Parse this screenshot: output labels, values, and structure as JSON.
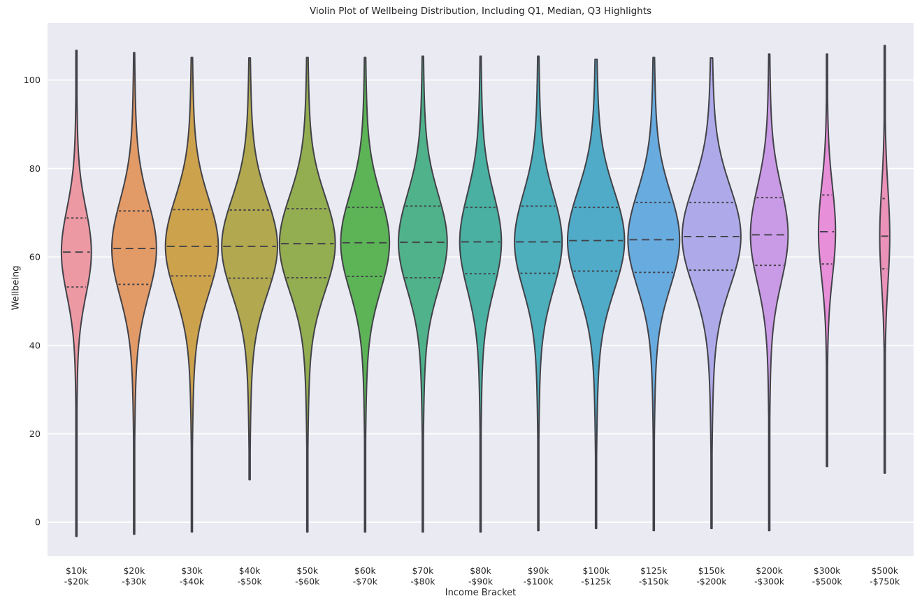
{
  "chart_data": {
    "type": "violin",
    "title": "Violin Plot of Wellbeing Distribution, Including Q1, Median, Q3 Highlights",
    "xlabel": "Income Bracket",
    "ylabel": "Wellbeing",
    "yticks": [
      0,
      20,
      40,
      60,
      80,
      100
    ],
    "ylim": [
      -7.7,
      112.9
    ],
    "inner": "quartile",
    "grid": "horizontal white gridlines on gray axes background",
    "legend": "none",
    "background_color": "#eaeaf2",
    "grid_color": "#ffffff",
    "edge_color": "#424248",
    "text_color": "#262626",
    "categories": [
      [
        "$10k",
        "-$20k"
      ],
      [
        "$20k",
        "-$30k"
      ],
      [
        "$30k",
        "-$40k"
      ],
      [
        "$40k",
        "-$50k"
      ],
      [
        "$50k",
        "-$60k"
      ],
      [
        "$60k",
        "-$70k"
      ],
      [
        "$70k",
        "-$80k"
      ],
      [
        "$80k",
        "-$90k"
      ],
      [
        "$90k",
        "-$100k"
      ],
      [
        "$100k",
        "-$125k"
      ],
      [
        "$125k",
        "-$150k"
      ],
      [
        "$150k",
        "-$200k"
      ],
      [
        "$200k",
        "-$300k"
      ],
      [
        "$300k",
        "-$500k"
      ],
      [
        "$500k",
        "-$750k"
      ]
    ],
    "series": [
      {
        "label": "$10k-$20k",
        "color": "#ec99a4",
        "min": -3.2,
        "max": 106.7,
        "q1": 53.2,
        "median": 61.1,
        "q3": 68.8,
        "width": 0.51,
        "sigma": 9.5
      },
      {
        "label": "$20k-$30k",
        "color": "#e29a67",
        "min": -2.7,
        "max": 106.2,
        "q1": 53.8,
        "median": 61.9,
        "q3": 70.4,
        "width": 0.76,
        "sigma": 10.5
      },
      {
        "label": "$30k-$40k",
        "color": "#cda24d",
        "min": -2.2,
        "max": 105.1,
        "q1": 55.7,
        "median": 62.4,
        "q3": 70.7,
        "width": 0.9,
        "sigma": 10.5
      },
      {
        "label": "$40k-$50k",
        "color": "#b1a850",
        "min": 9.6,
        "max": 105.0,
        "q1": 55.2,
        "median": 62.4,
        "q3": 70.6,
        "width": 0.95,
        "sigma": 10.5
      },
      {
        "label": "$50k-$60k",
        "color": "#93ad51",
        "min": -2.2,
        "max": 105.1,
        "q1": 55.3,
        "median": 63.0,
        "q3": 70.9,
        "width": 0.95,
        "sigma": 10.5
      },
      {
        "label": "$60k-$70k",
        "color": "#5cb456",
        "min": -2.2,
        "max": 105.1,
        "q1": 55.6,
        "median": 63.2,
        "q3": 71.2,
        "width": 0.83,
        "sigma": 10.5
      },
      {
        "label": "$70k-$80k",
        "color": "#4fb28b",
        "min": -2.2,
        "max": 105.4,
        "q1": 55.3,
        "median": 63.3,
        "q3": 71.5,
        "width": 0.83,
        "sigma": 10.5
      },
      {
        "label": "$80k-$90k",
        "color": "#49b0a2",
        "min": -2.2,
        "max": 105.4,
        "q1": 56.2,
        "median": 63.4,
        "q3": 71.2,
        "width": 0.71,
        "sigma": 10.5
      },
      {
        "label": "$90k-$100k",
        "color": "#4daebc",
        "min": -1.9,
        "max": 105.4,
        "q1": 56.3,
        "median": 63.4,
        "q3": 71.5,
        "width": 0.81,
        "sigma": 10.5
      },
      {
        "label": "$100k-$125k",
        "color": "#4fabc8",
        "min": -1.4,
        "max": 104.7,
        "q1": 56.8,
        "median": 63.7,
        "q3": 71.2,
        "width": 0.97,
        "sigma": 11.0
      },
      {
        "label": "$125k-$150k",
        "color": "#68abdf",
        "min": -1.9,
        "max": 105.1,
        "q1": 56.5,
        "median": 63.9,
        "q3": 72.3,
        "width": 0.88,
        "sigma": 10.5
      },
      {
        "label": "$150k-$200k",
        "color": "#aeaaea",
        "min": -1.4,
        "max": 105.0,
        "q1": 57.0,
        "median": 64.6,
        "q3": 72.3,
        "width": 1.0,
        "sigma": 11.0
      },
      {
        "label": "$200k-$300k",
        "color": "#c99ae5",
        "min": -1.9,
        "max": 105.9,
        "q1": 58.1,
        "median": 65.0,
        "q3": 73.4,
        "width": 0.64,
        "sigma": 10.5
      },
      {
        "label": "$300k-$500k",
        "color": "#e78fd9",
        "min": 12.6,
        "max": 105.9,
        "q1": 58.4,
        "median": 65.7,
        "q3": 74.0,
        "width": 0.29,
        "sigma": 10.0
      },
      {
        "label": "$500k-$750k",
        "color": "#eb92ba",
        "min": 11.1,
        "max": 107.8,
        "q1": 57.3,
        "median": 64.7,
        "q3": 73.2,
        "width": 0.17,
        "sigma": 10.5
      }
    ]
  }
}
